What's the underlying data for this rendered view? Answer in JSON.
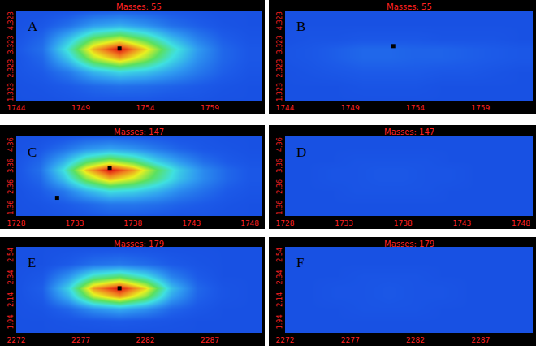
{
  "chart_data": [
    {
      "type": "heatmap",
      "label": "A",
      "title": "Masses: 55",
      "xlim": [
        1744,
        1763
      ],
      "xticks": [
        1744,
        1749,
        1754,
        1759
      ],
      "ylim": [
        1.0,
        4.8
      ],
      "yticks": [
        1.323,
        2.323,
        3.323,
        4.323
      ],
      "zlim": [
        0,
        100
      ],
      "x": [
        1744,
        1746,
        1748,
        1750,
        1752,
        1754,
        1756,
        1758,
        1760,
        1762
      ],
      "y": [
        1.0,
        1.6,
        2.2,
        2.8,
        3.2,
        3.6,
        4.2,
        4.8
      ],
      "cells": [
        [
          12,
          12,
          13,
          14,
          14,
          14,
          13,
          13,
          12,
          12
        ],
        [
          12,
          13,
          15,
          18,
          20,
          19,
          17,
          15,
          13,
          12
        ],
        [
          13,
          15,
          22,
          35,
          42,
          38,
          30,
          22,
          16,
          13
        ],
        [
          13,
          18,
          40,
          70,
          85,
          68,
          45,
          28,
          18,
          14
        ],
        [
          14,
          20,
          48,
          82,
          100,
          78,
          50,
          30,
          18,
          14
        ],
        [
          13,
          18,
          38,
          62,
          72,
          58,
          38,
          24,
          16,
          13
        ],
        [
          12,
          14,
          20,
          30,
          34,
          28,
          20,
          16,
          13,
          12
        ],
        [
          12,
          12,
          13,
          15,
          16,
          15,
          14,
          13,
          12,
          12
        ]
      ],
      "points": [
        {
          "x": 1752,
          "y": 3.2
        }
      ]
    },
    {
      "type": "heatmap",
      "label": "B",
      "title": "Masses: 55",
      "xlim": [
        1744,
        1763
      ],
      "xticks": [
        1744,
        1749,
        1754,
        1759
      ],
      "ylim": [
        1.0,
        4.8
      ],
      "yticks": [
        1.323,
        2.323,
        3.323,
        4.323
      ],
      "zlim": [
        0,
        100
      ],
      "x": [
        1744,
        1746,
        1748,
        1750,
        1752,
        1754,
        1756,
        1758,
        1760,
        1762
      ],
      "y": [
        1.0,
        1.6,
        2.2,
        2.8,
        3.2,
        3.6,
        4.2,
        4.8
      ],
      "cells": [
        [
          12,
          12,
          12,
          12,
          12,
          12,
          12,
          12,
          12,
          12
        ],
        [
          12,
          12,
          12,
          13,
          13,
          13,
          12,
          12,
          12,
          12
        ],
        [
          12,
          13,
          14,
          15,
          15,
          15,
          14,
          14,
          13,
          12
        ],
        [
          13,
          14,
          16,
          18,
          18,
          17,
          17,
          16,
          15,
          14
        ],
        [
          13,
          14,
          16,
          18,
          18,
          17,
          17,
          16,
          15,
          14
        ],
        [
          12,
          13,
          13,
          14,
          14,
          14,
          13,
          13,
          13,
          12
        ],
        [
          12,
          12,
          12,
          12,
          12,
          12,
          12,
          12,
          12,
          12
        ],
        [
          12,
          12,
          12,
          12,
          12,
          12,
          12,
          12,
          12,
          12
        ]
      ],
      "points": [
        {
          "x": 1752.3,
          "y": 3.3
        }
      ]
    },
    {
      "type": "heatmap",
      "label": "C",
      "title": "Masses: 147",
      "xlim": [
        1728,
        1749
      ],
      "xticks": [
        1728,
        1733,
        1738,
        1743,
        1748
      ],
      "ylim": [
        1.0,
        4.8
      ],
      "yticks": [
        1.36,
        2.36,
        3.36,
        4.36
      ],
      "zlim": [
        0,
        100
      ],
      "x": [
        1728,
        1730,
        1732,
        1734,
        1736,
        1738,
        1740,
        1742,
        1744,
        1746,
        1748
      ],
      "y": [
        1.0,
        1.6,
        2.2,
        2.8,
        3.2,
        3.6,
        4.2,
        4.8
      ],
      "cells": [
        [
          12,
          12,
          13,
          14,
          15,
          15,
          14,
          13,
          13,
          12,
          12
        ],
        [
          12,
          13,
          15,
          18,
          22,
          22,
          20,
          17,
          15,
          13,
          12
        ],
        [
          12,
          15,
          22,
          35,
          45,
          42,
          35,
          26,
          20,
          15,
          13
        ],
        [
          13,
          18,
          38,
          65,
          82,
          72,
          55,
          38,
          26,
          18,
          14
        ],
        [
          13,
          20,
          45,
          80,
          100,
          85,
          60,
          40,
          26,
          18,
          14
        ],
        [
          13,
          18,
          35,
          58,
          70,
          60,
          42,
          30,
          20,
          15,
          13
        ],
        [
          12,
          14,
          20,
          28,
          32,
          28,
          22,
          17,
          14,
          13,
          12
        ],
        [
          12,
          12,
          13,
          15,
          16,
          15,
          14,
          13,
          13,
          12,
          12
        ]
      ],
      "points": [
        {
          "x": 1736,
          "y": 3.3
        },
        {
          "x": 1731.5,
          "y": 1.87
        }
      ]
    },
    {
      "type": "heatmap",
      "label": "D",
      "title": "Masses: 147",
      "xlim": [
        1728,
        1749
      ],
      "xticks": [
        1728,
        1733,
        1738,
        1743,
        1748
      ],
      "ylim": [
        1.0,
        4.8
      ],
      "yticks": [
        1.36,
        2.36,
        3.36,
        4.36
      ],
      "zlim": [
        0,
        100
      ],
      "x": [
        1728,
        1730,
        1732,
        1734,
        1736,
        1738,
        1740,
        1742,
        1744,
        1746,
        1748
      ],
      "y": [
        1.0,
        1.6,
        2.2,
        2.8,
        3.2,
        3.6,
        4.2,
        4.8
      ],
      "cells": [
        [
          12,
          12,
          12,
          12,
          12,
          12,
          12,
          12,
          12,
          12,
          12
        ],
        [
          12,
          12,
          12,
          12,
          12,
          12,
          12,
          12,
          12,
          12,
          12
        ],
        [
          12,
          12,
          12,
          13,
          13,
          13,
          13,
          12,
          12,
          12,
          12
        ],
        [
          12,
          12,
          13,
          13,
          14,
          14,
          13,
          13,
          12,
          12,
          12
        ],
        [
          12,
          12,
          13,
          13,
          14,
          14,
          13,
          13,
          12,
          12,
          12
        ],
        [
          12,
          12,
          12,
          13,
          13,
          13,
          13,
          12,
          12,
          12,
          12
        ],
        [
          12,
          12,
          12,
          12,
          12,
          12,
          12,
          12,
          12,
          12,
          12
        ],
        [
          12,
          12,
          12,
          12,
          12,
          12,
          12,
          12,
          12,
          12,
          12
        ]
      ],
      "points": []
    },
    {
      "type": "heatmap",
      "label": "E",
      "title": "Masses: 179",
      "xlim": [
        2272,
        2291
      ],
      "xticks": [
        2272,
        2277,
        2282,
        2287
      ],
      "ylim": [
        1.85,
        2.62
      ],
      "yticks": [
        1.94,
        2.14,
        2.34,
        2.54
      ],
      "zlim": [
        0,
        100
      ],
      "x": [
        2272,
        2274,
        2276,
        2278,
        2280,
        2282,
        2284,
        2286,
        2288,
        2290
      ],
      "y": [
        1.85,
        1.96,
        2.07,
        2.18,
        2.25,
        2.36,
        2.47,
        2.62
      ],
      "cells": [
        [
          12,
          12,
          12,
          12,
          12,
          12,
          12,
          12,
          12,
          12
        ],
        [
          12,
          12,
          13,
          14,
          15,
          14,
          13,
          12,
          12,
          12
        ],
        [
          12,
          13,
          18,
          28,
          34,
          28,
          18,
          14,
          12,
          12
        ],
        [
          12,
          15,
          35,
          70,
          85,
          65,
          32,
          17,
          13,
          12
        ],
        [
          12,
          16,
          42,
          85,
          100,
          78,
          38,
          18,
          13,
          12
        ],
        [
          12,
          14,
          28,
          50,
          58,
          45,
          24,
          15,
          12,
          12
        ],
        [
          12,
          12,
          15,
          20,
          22,
          19,
          15,
          13,
          12,
          12
        ],
        [
          12,
          12,
          12,
          12,
          12,
          12,
          12,
          12,
          12,
          12
        ]
      ],
      "points": [
        {
          "x": 2280,
          "y": 2.25
        }
      ]
    },
    {
      "type": "heatmap",
      "label": "F",
      "title": "Masses: 179",
      "xlim": [
        2272,
        2291
      ],
      "xticks": [
        2272,
        2277,
        2282,
        2287
      ],
      "ylim": [
        1.85,
        2.62
      ],
      "yticks": [
        1.94,
        2.14,
        2.34,
        2.54
      ],
      "zlim": [
        0,
        100
      ],
      "x": [
        2272,
        2274,
        2276,
        2278,
        2280,
        2282,
        2284,
        2286,
        2288,
        2290
      ],
      "y": [
        1.85,
        1.96,
        2.07,
        2.18,
        2.25,
        2.36,
        2.47,
        2.62
      ],
      "cells": [
        [
          12,
          12,
          12,
          12,
          12,
          12,
          12,
          12,
          12,
          12
        ],
        [
          12,
          12,
          12,
          12,
          12,
          12,
          12,
          12,
          12,
          12
        ],
        [
          12,
          12,
          12,
          13,
          13,
          13,
          12,
          12,
          12,
          12
        ],
        [
          12,
          12,
          13,
          13,
          14,
          13,
          13,
          12,
          12,
          12
        ],
        [
          12,
          12,
          13,
          13,
          14,
          13,
          13,
          12,
          12,
          12
        ],
        [
          12,
          12,
          12,
          13,
          13,
          13,
          12,
          12,
          12,
          12
        ],
        [
          12,
          12,
          12,
          12,
          12,
          12,
          12,
          12,
          12,
          12
        ],
        [
          12,
          12,
          12,
          12,
          12,
          12,
          12,
          12,
          12,
          12
        ]
      ],
      "points": []
    }
  ]
}
